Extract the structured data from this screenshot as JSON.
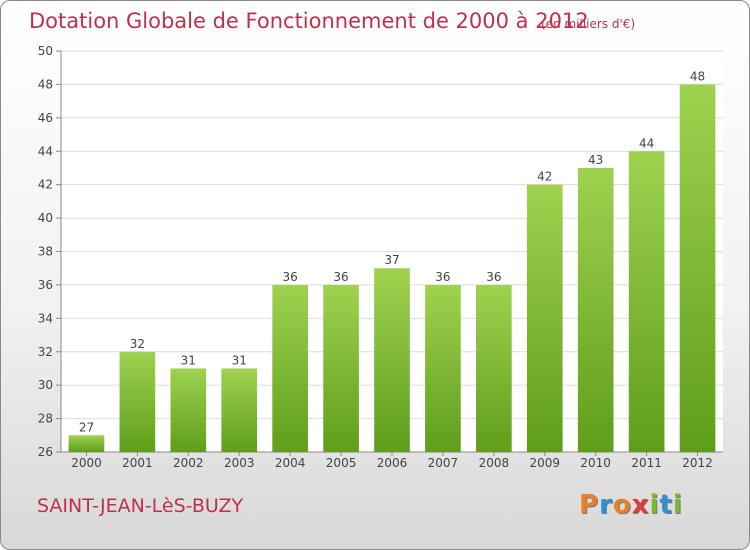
{
  "title": "Dotation Globale de Fonctionnement de 2000 à 2012",
  "subtitle": "(en milliers d'€)",
  "commune": "SAINT-JEAN-LèS-BUZY",
  "logo": {
    "letters": [
      "P",
      "r",
      "o",
      "x",
      "i",
      "t",
      "i"
    ],
    "colors": [
      "#e8812c",
      "#2f8fd6",
      "#e8812c",
      "#e03c3c",
      "#7ab82e",
      "#2f8fd6",
      "#7ab82e"
    ]
  },
  "colors": {
    "bar_top": "#9ed24f",
    "bar_bottom": "#5f9e1a",
    "title": "#c0304e"
  },
  "chart_data": {
    "type": "bar",
    "categories": [
      "2000",
      "2001",
      "2002",
      "2003",
      "2004",
      "2005",
      "2006",
      "2007",
      "2008",
      "2009",
      "2010",
      "2011",
      "2012"
    ],
    "values": [
      27,
      32,
      31,
      31,
      36,
      36,
      37,
      36,
      36,
      42,
      43,
      44,
      48
    ],
    "ylim": [
      26,
      50
    ],
    "yticks": [
      26,
      28,
      30,
      32,
      34,
      36,
      38,
      40,
      42,
      44,
      46,
      48,
      50
    ],
    "grid": true,
    "data_labels": true
  }
}
